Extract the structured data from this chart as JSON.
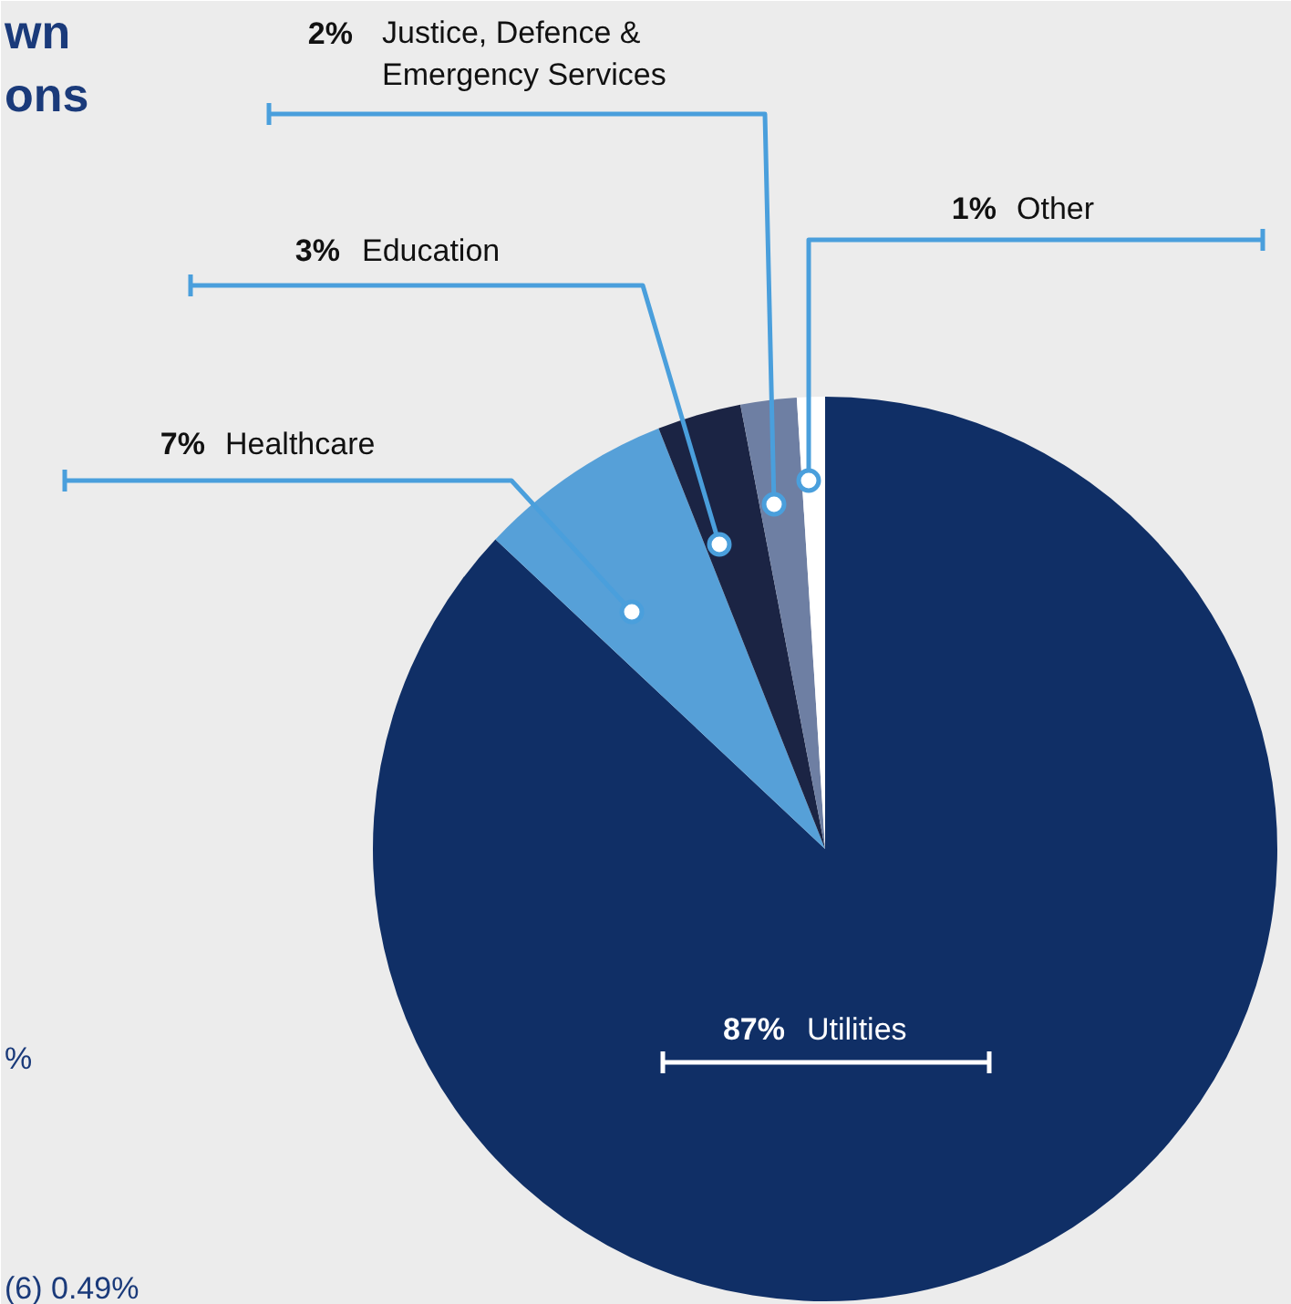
{
  "chart_data": {
    "type": "pie",
    "title": "wn\nons",
    "categories": [
      "Utilities",
      "Healthcare",
      "Education",
      "Justice, Defence &\nEmergency Services",
      "Other"
    ],
    "values": [
      87,
      7,
      3,
      2,
      1
    ],
    "colors": [
      "#102f66",
      "#56a0d8",
      "#1b2444",
      "#6e7fa3",
      "#ffffff"
    ],
    "value_labels": [
      "87%",
      "7%",
      "3%",
      "2%",
      "1%"
    ],
    "annotations": [
      "%",
      "(6) 0.49%"
    ]
  }
}
